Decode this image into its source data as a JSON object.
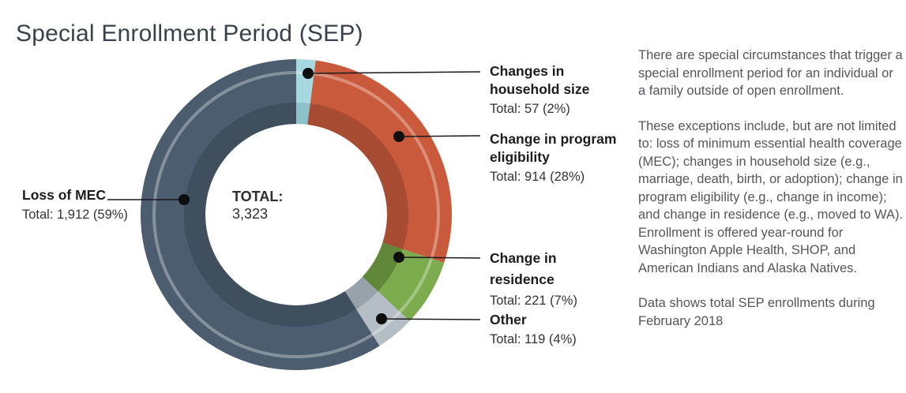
{
  "title": "Special Enrollment Period (SEP)",
  "chart_data": {
    "type": "pie",
    "variant": "donut",
    "title": "Special Enrollment Period (SEP)",
    "center": {
      "label": "TOTAL:",
      "value": "3,323"
    },
    "total": 3323,
    "slices": [
      {
        "label": "Changes in household size",
        "value": 57,
        "pct": 2,
        "total_label": "Total: 57 (2%)",
        "color": "#a6d9df",
        "inner_color": "#8ec2ca"
      },
      {
        "label": "Change in program eligibility",
        "value": 914,
        "pct": 28,
        "total_label": "Total: 914 (28%)",
        "color": "#ca5a3c",
        "inner_color": "#a74b32"
      },
      {
        "label": "Change in residence",
        "value": 221,
        "pct": 7,
        "total_label": "Total: 221 (7%)",
        "color": "#7dac4f",
        "inner_color": "#61873a"
      },
      {
        "label": "Other",
        "value": 119,
        "pct": 4,
        "total_label": "Total: 119 (4%)",
        "color": "#b5bdc5",
        "inner_color": "#98a2ab"
      },
      {
        "label": "Loss of MEC",
        "value": 1912,
        "pct": 59,
        "total_label": "Total: 1,912 (59%)",
        "color": "#4b5d6e",
        "inner_color": "#3f4f5e"
      }
    ],
    "ring_accent_color": "rgba(255,255,255,0.32)",
    "leader_line_color": "#1a1a1a",
    "legend_position": "callouts",
    "start_angle_deg": 0,
    "direction": "clockwise"
  },
  "description": {
    "paragraphs": [
      "There are special circumstances that trigger a special enrollment period for an individual or a family outside of open enrollment.",
      "These exceptions include, but are not limited to: loss of minimum essential health coverage (MEC); changes in household size (e.g., marriage, death, birth, or adoption); change in program eligibility (e.g., change in income); and change in residence (e.g., moved to WA). Enrollment is offered year-round for Washington Apple Health, SHOP, and American Indians and Alaska Natives.",
      "Data shows total SEP enrollments during February 2018"
    ]
  }
}
